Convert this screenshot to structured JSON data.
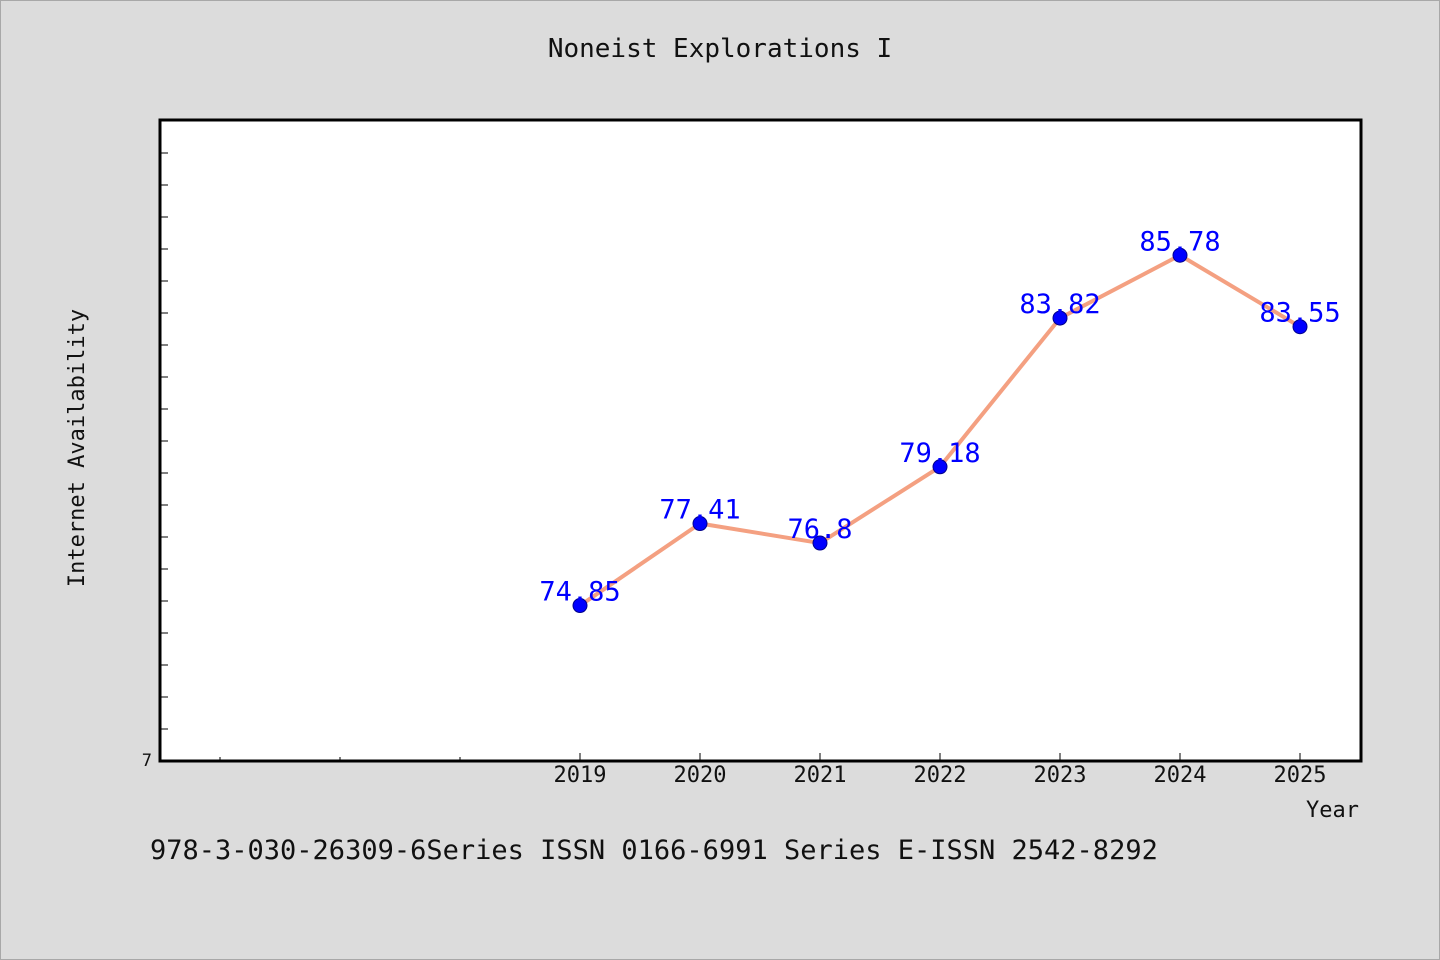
{
  "chart_data": {
    "type": "line",
    "title": "Noneist Explorations I",
    "xlabel": "Year",
    "ylabel": "Internet Availability",
    "categories": [
      "2019",
      "2020",
      "2021",
      "2022",
      "2023",
      "2024",
      "2025"
    ],
    "series": [
      {
        "values": [
          74.85,
          77.41,
          76.8,
          79.18,
          83.82,
          85.78,
          83.55
        ],
        "color": "#f4a081",
        "marker_color": "#0000ff"
      }
    ],
    "data_labels": [
      "74.85",
      "77.41",
      "76.8",
      "79.18",
      "83.82",
      "85.78",
      "83.55"
    ],
    "y_tick_labels": [
      "7"
    ],
    "ylim": [
      70,
      90
    ],
    "grid": false,
    "legend": "none"
  },
  "footer": {
    "text": "978-3-030-26309-6Series ISSN 0166-6991 Series E-ISSN 2542-8292"
  },
  "colors": {
    "background": "#dcdcdc",
    "plot_background": "#ffffff",
    "axis": "#000000",
    "label_color": "#0000ff"
  }
}
